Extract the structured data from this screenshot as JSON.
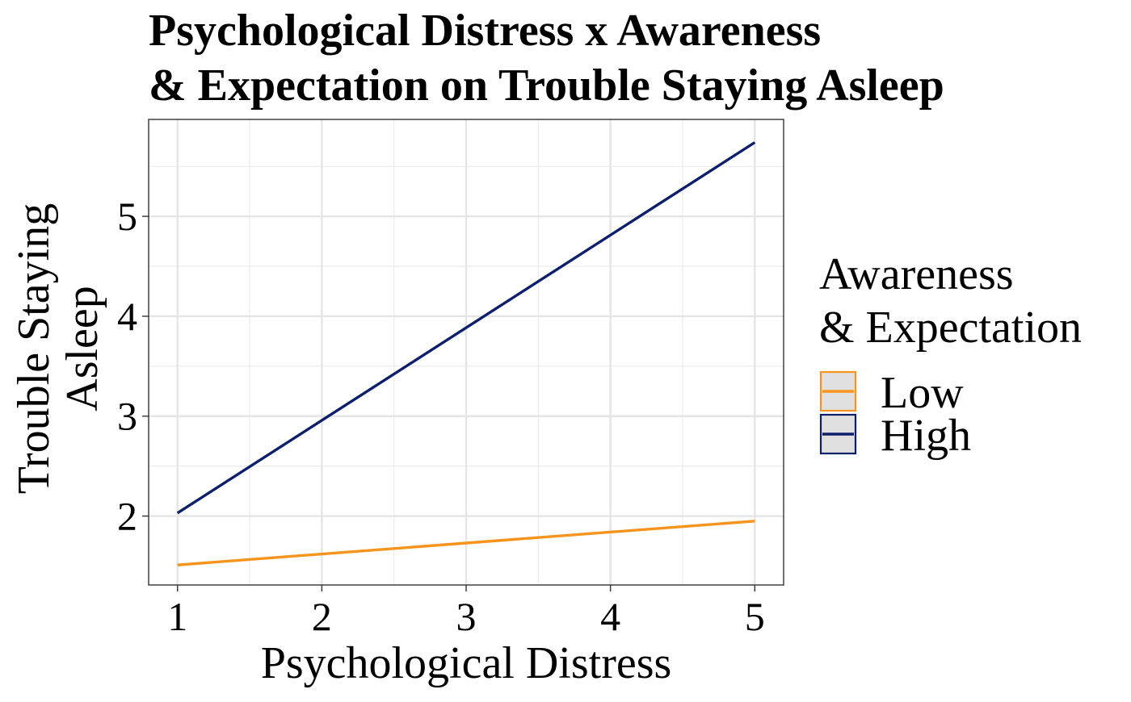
{
  "chart_data": {
    "type": "line",
    "title": [
      "Psychological Distress x Awareness",
      "& Expectation on Trouble Staying Asleep"
    ],
    "xlabel": "Psychological Distress",
    "ylabel": [
      "Trouble Staying",
      "Asleep"
    ],
    "xlim": [
      0.8,
      5.2
    ],
    "ylim": [
      1.31,
      5.97
    ],
    "xticks": [
      1,
      2,
      3,
      4,
      5
    ],
    "yticks": [
      2,
      3,
      4,
      5
    ],
    "x_minor": [
      1.5,
      2.5,
      3.5,
      4.5
    ],
    "y_minor": [
      2.5,
      3.5,
      4.5,
      5.5
    ],
    "grid": true,
    "legend": {
      "title": [
        "Awareness",
        "& Expectation"
      ],
      "position": "right"
    },
    "series": [
      {
        "name": "Low",
        "color": "#F7941D",
        "x": [
          1,
          5
        ],
        "y": [
          1.51,
          1.95
        ]
      },
      {
        "name": "High",
        "color": "#0D1F6B",
        "x": [
          1,
          5
        ],
        "y": [
          2.03,
          5.74
        ]
      }
    ]
  }
}
